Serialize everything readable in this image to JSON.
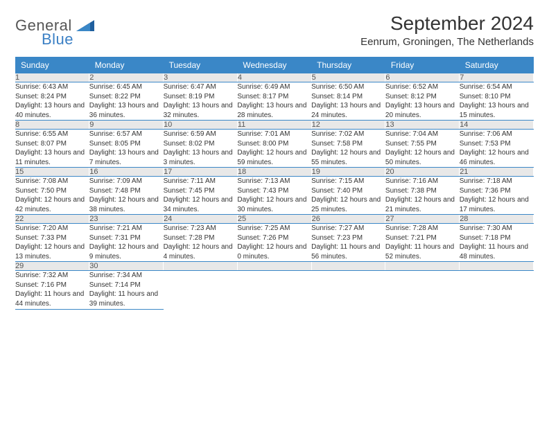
{
  "logo": {
    "top": "General",
    "bottom": "Blue"
  },
  "title": "September 2024",
  "location": "Eenrum, Groningen, The Netherlands",
  "colors": {
    "header_bg": "#3a87c7",
    "daynum_bg": "#e8e8e8",
    "border": "#3a87c7"
  },
  "day_headers": [
    "Sunday",
    "Monday",
    "Tuesday",
    "Wednesday",
    "Thursday",
    "Friday",
    "Saturday"
  ],
  "weeks": [
    [
      {
        "n": "1",
        "sr": "6:43 AM",
        "ss": "8:24 PM",
        "dl": "13 hours and 40 minutes."
      },
      {
        "n": "2",
        "sr": "6:45 AM",
        "ss": "8:22 PM",
        "dl": "13 hours and 36 minutes."
      },
      {
        "n": "3",
        "sr": "6:47 AM",
        "ss": "8:19 PM",
        "dl": "13 hours and 32 minutes."
      },
      {
        "n": "4",
        "sr": "6:49 AM",
        "ss": "8:17 PM",
        "dl": "13 hours and 28 minutes."
      },
      {
        "n": "5",
        "sr": "6:50 AM",
        "ss": "8:14 PM",
        "dl": "13 hours and 24 minutes."
      },
      {
        "n": "6",
        "sr": "6:52 AM",
        "ss": "8:12 PM",
        "dl": "13 hours and 20 minutes."
      },
      {
        "n": "7",
        "sr": "6:54 AM",
        "ss": "8:10 PM",
        "dl": "13 hours and 15 minutes."
      }
    ],
    [
      {
        "n": "8",
        "sr": "6:55 AM",
        "ss": "8:07 PM",
        "dl": "13 hours and 11 minutes."
      },
      {
        "n": "9",
        "sr": "6:57 AM",
        "ss": "8:05 PM",
        "dl": "13 hours and 7 minutes."
      },
      {
        "n": "10",
        "sr": "6:59 AM",
        "ss": "8:02 PM",
        "dl": "13 hours and 3 minutes."
      },
      {
        "n": "11",
        "sr": "7:01 AM",
        "ss": "8:00 PM",
        "dl": "12 hours and 59 minutes."
      },
      {
        "n": "12",
        "sr": "7:02 AM",
        "ss": "7:58 PM",
        "dl": "12 hours and 55 minutes."
      },
      {
        "n": "13",
        "sr": "7:04 AM",
        "ss": "7:55 PM",
        "dl": "12 hours and 50 minutes."
      },
      {
        "n": "14",
        "sr": "7:06 AM",
        "ss": "7:53 PM",
        "dl": "12 hours and 46 minutes."
      }
    ],
    [
      {
        "n": "15",
        "sr": "7:08 AM",
        "ss": "7:50 PM",
        "dl": "12 hours and 42 minutes."
      },
      {
        "n": "16",
        "sr": "7:09 AM",
        "ss": "7:48 PM",
        "dl": "12 hours and 38 minutes."
      },
      {
        "n": "17",
        "sr": "7:11 AM",
        "ss": "7:45 PM",
        "dl": "12 hours and 34 minutes."
      },
      {
        "n": "18",
        "sr": "7:13 AM",
        "ss": "7:43 PM",
        "dl": "12 hours and 30 minutes."
      },
      {
        "n": "19",
        "sr": "7:15 AM",
        "ss": "7:40 PM",
        "dl": "12 hours and 25 minutes."
      },
      {
        "n": "20",
        "sr": "7:16 AM",
        "ss": "7:38 PM",
        "dl": "12 hours and 21 minutes."
      },
      {
        "n": "21",
        "sr": "7:18 AM",
        "ss": "7:36 PM",
        "dl": "12 hours and 17 minutes."
      }
    ],
    [
      {
        "n": "22",
        "sr": "7:20 AM",
        "ss": "7:33 PM",
        "dl": "12 hours and 13 minutes."
      },
      {
        "n": "23",
        "sr": "7:21 AM",
        "ss": "7:31 PM",
        "dl": "12 hours and 9 minutes."
      },
      {
        "n": "24",
        "sr": "7:23 AM",
        "ss": "7:28 PM",
        "dl": "12 hours and 4 minutes."
      },
      {
        "n": "25",
        "sr": "7:25 AM",
        "ss": "7:26 PM",
        "dl": "12 hours and 0 minutes."
      },
      {
        "n": "26",
        "sr": "7:27 AM",
        "ss": "7:23 PM",
        "dl": "11 hours and 56 minutes."
      },
      {
        "n": "27",
        "sr": "7:28 AM",
        "ss": "7:21 PM",
        "dl": "11 hours and 52 minutes."
      },
      {
        "n": "28",
        "sr": "7:30 AM",
        "ss": "7:18 PM",
        "dl": "11 hours and 48 minutes."
      }
    ],
    [
      {
        "n": "29",
        "sr": "7:32 AM",
        "ss": "7:16 PM",
        "dl": "11 hours and 44 minutes."
      },
      {
        "n": "30",
        "sr": "7:34 AM",
        "ss": "7:14 PM",
        "dl": "11 hours and 39 minutes."
      },
      null,
      null,
      null,
      null,
      null
    ]
  ],
  "labels": {
    "sunrise": "Sunrise: ",
    "sunset": "Sunset: ",
    "daylight": "Daylight: "
  }
}
